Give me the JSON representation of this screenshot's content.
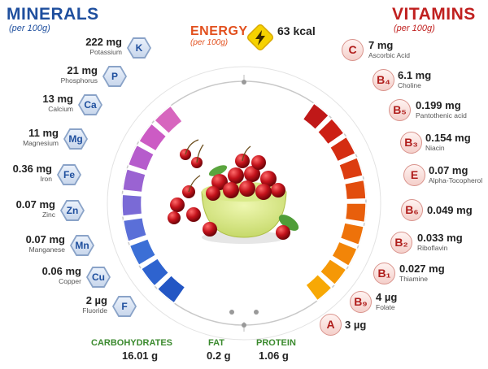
{
  "minerals": {
    "title": "MINERALS",
    "subtitle": "(per 100g)",
    "items": [
      {
        "amount": "222 mg",
        "name": "Potassium",
        "symbol": "K",
        "color": "#2356c4"
      },
      {
        "amount": "21 mg",
        "name": "Phosphorus",
        "symbol": "P",
        "color": "#2e63cf"
      },
      {
        "amount": "13 mg",
        "name": "Calcium",
        "symbol": "Ca",
        "color": "#3b6fd6"
      },
      {
        "amount": "11 mg",
        "name": "Magnesium",
        "symbol": "Mg",
        "color": "#5a6fd8"
      },
      {
        "amount": "0.36 mg",
        "name": "Iron",
        "symbol": "Fe",
        "color": "#7a6ad6"
      },
      {
        "amount": "0.07 mg",
        "name": "Zinc",
        "symbol": "Zn",
        "color": "#9a63d2"
      },
      {
        "amount": "0.07 mg",
        "name": "Manganese",
        "symbol": "Mn",
        "color": "#b65ccc"
      },
      {
        "amount": "0.06 mg",
        "name": "Copper",
        "symbol": "Cu",
        "color": "#cc5bc4"
      },
      {
        "amount": "2 µg",
        "name": "Fluoride",
        "symbol": "F",
        "color": "#d766be"
      }
    ]
  },
  "vitamins": {
    "title": "VITAMINS",
    "subtitle": "(per 100g)",
    "items": [
      {
        "amount": "7 mg",
        "name": "Ascorbic Acid",
        "symbol": "C",
        "color": "#c01818"
      },
      {
        "amount": "6.1 mg",
        "name": "Choline",
        "symbol": "B₄",
        "color": "#cc1f14"
      },
      {
        "amount": "0.199 mg",
        "name": "Pantothenic acid",
        "symbol": "B₅",
        "color": "#d42d12"
      },
      {
        "amount": "0.154 mg",
        "name": "Niacin",
        "symbol": "B₃",
        "color": "#dc3c10"
      },
      {
        "amount": "0.07 mg",
        "name": "Alpha-Tocopherol",
        "symbol": "E",
        "color": "#e24d0e"
      },
      {
        "amount": "0.049 mg",
        "name": "",
        "symbol": "B₆",
        "color": "#e85f0c"
      },
      {
        "amount": "0.033 mg",
        "name": "Riboflavin",
        "symbol": "B₂",
        "color": "#ee720a"
      },
      {
        "amount": "0.027 mg",
        "name": "Thiamine",
        "symbol": "B₁",
        "color": "#f28508"
      },
      {
        "amount": "4 µg",
        "name": "Folate",
        "symbol": "B₉",
        "color": "#f59806"
      },
      {
        "amount": "3 µg",
        "name": "",
        "symbol": "A",
        "color": "#f7a805"
      }
    ]
  },
  "energy": {
    "title": "ENERGY",
    "subtitle": "(per 100g)",
    "value": "63 kcal",
    "icon": "lightning-bolt-icon",
    "color": "#e2501e"
  },
  "macros": [
    {
      "label": "CARBOHYDRATES",
      "value": "16.01 g",
      "color": "#3b8a2e"
    },
    {
      "label": "FAT",
      "value": "0.2 g",
      "color": "#3b8a2e"
    },
    {
      "label": "PROTEIN",
      "value": "1.06 g",
      "color": "#3b8a2e"
    }
  ]
}
